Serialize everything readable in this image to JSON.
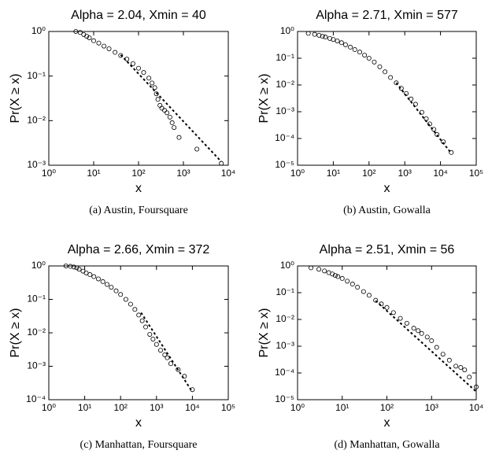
{
  "chart_data": [
    {
      "type": "scatter",
      "title": "Alpha = 2.04, Xmin = 40",
      "xlabel": "x",
      "ylabel": "Pr(X ≥ x)",
      "caption": "(a)  Austin, Foursquare",
      "log_x": true,
      "log_y": true,
      "xlim": [
        1,
        10000
      ],
      "ylim": [
        0.001,
        1
      ],
      "xticks": [
        {
          "value": 1,
          "label": "10⁰"
        },
        {
          "value": 10,
          "label": "10¹"
        },
        {
          "value": 100,
          "label": "10²"
        },
        {
          "value": 1000,
          "label": "10³"
        },
        {
          "value": 10000,
          "label": "10⁴"
        }
      ],
      "yticks": [
        {
          "value": 0.001,
          "label": "10⁻³"
        },
        {
          "value": 0.01,
          "label": "10⁻²"
        },
        {
          "value": 0.1,
          "label": "10⁻¹"
        },
        {
          "value": 1,
          "label": "10⁰"
        }
      ],
      "series": [
        {
          "marker": "circle",
          "color": "#000000",
          "x": [
            4,
            5,
            6,
            7,
            8,
            10,
            13,
            17,
            22,
            30,
            40,
            55,
            75,
            100,
            130,
            170,
            200,
            230,
            250,
            270,
            300,
            330,
            380,
            430,
            500,
            560,
            620,
            800,
            2000,
            7000
          ],
          "values": [
            1,
            0.95,
            0.85,
            0.78,
            0.72,
            0.62,
            0.55,
            0.47,
            0.41,
            0.34,
            0.29,
            0.24,
            0.19,
            0.15,
            0.12,
            0.09,
            0.07,
            0.055,
            0.04,
            0.03,
            0.022,
            0.019,
            0.017,
            0.015,
            0.012,
            0.009,
            0.007,
            0.0042,
            0.0023,
            0.0011
          ]
        },
        {
          "line": "dashed",
          "color": "#000000",
          "x": [
            40,
            7000
          ],
          "values": [
            0.3,
            0.0012
          ]
        }
      ]
    },
    {
      "type": "scatter",
      "title": "Alpha = 2.71, Xmin = 577",
      "xlabel": "x",
      "ylabel": "Pr(X ≥ x)",
      "caption": "(b)  Austin, Gowalla",
      "log_x": true,
      "log_y": true,
      "xlim": [
        1,
        100000
      ],
      "ylim": [
        1e-05,
        1
      ],
      "xticks": [
        {
          "value": 1,
          "label": "10⁰"
        },
        {
          "value": 10,
          "label": "10¹"
        },
        {
          "value": 100,
          "label": "10²"
        },
        {
          "value": 1000,
          "label": "10³"
        },
        {
          "value": 10000,
          "label": "10⁴"
        },
        {
          "value": 100000,
          "label": "10⁵"
        }
      ],
      "yticks": [
        {
          "value": 1e-05,
          "label": "10⁻⁵"
        },
        {
          "value": 0.0001,
          "label": "10⁻⁴"
        },
        {
          "value": 0.001,
          "label": "10⁻³"
        },
        {
          "value": 0.01,
          "label": "10⁻²"
        },
        {
          "value": 0.1,
          "label": "10⁻¹"
        },
        {
          "value": 1,
          "label": "10⁰"
        }
      ],
      "series": [
        {
          "marker": "circle",
          "color": "#000000",
          "x": [
            2,
            3,
            4,
            5,
            6,
            8,
            10,
            13,
            17,
            22,
            30,
            40,
            55,
            75,
            100,
            140,
            200,
            280,
            400,
            577,
            800,
            1100,
            1500,
            2000,
            3000,
            4000,
            5000,
            6500,
            8000,
            12000,
            20000
          ],
          "values": [
            0.85,
            0.78,
            0.72,
            0.66,
            0.62,
            0.55,
            0.5,
            0.44,
            0.38,
            0.32,
            0.26,
            0.21,
            0.17,
            0.13,
            0.1,
            0.072,
            0.048,
            0.031,
            0.019,
            0.012,
            0.0075,
            0.0048,
            0.003,
            0.0019,
            0.00095,
            0.00055,
            0.00035,
            0.00022,
            0.00014,
            7.5e-05,
            3e-05
          ]
        },
        {
          "line": "dashed",
          "color": "#000000",
          "x": [
            577,
            20000
          ],
          "values": [
            0.012,
            2.8e-05
          ]
        }
      ]
    },
    {
      "type": "scatter",
      "title": "Alpha = 2.66, Xmin = 372",
      "xlabel": "x",
      "ylabel": "Pr(X ≥ x)",
      "caption": "(c)  Manhattan, Foursquare",
      "log_x": true,
      "log_y": true,
      "xlim": [
        1,
        100000
      ],
      "ylim": [
        0.0001,
        1
      ],
      "xticks": [
        {
          "value": 1,
          "label": "10⁰"
        },
        {
          "value": 10,
          "label": "10¹"
        },
        {
          "value": 100,
          "label": "10²"
        },
        {
          "value": 1000,
          "label": "10³"
        },
        {
          "value": 10000,
          "label": "10⁴"
        },
        {
          "value": 100000,
          "label": "10⁵"
        }
      ],
      "yticks": [
        {
          "value": 0.0001,
          "label": "10⁻⁴"
        },
        {
          "value": 0.001,
          "label": "10⁻³"
        },
        {
          "value": 0.01,
          "label": "10⁻²"
        },
        {
          "value": 0.1,
          "label": "10⁻¹"
        },
        {
          "value": 1,
          "label": "10⁰"
        }
      ],
      "series": [
        {
          "marker": "circle",
          "color": "#000000",
          "x": [
            3,
            4,
            5,
            6,
            7,
            9,
            11,
            14,
            18,
            24,
            32,
            42,
            55,
            75,
            100,
            140,
            190,
            250,
            320,
            400,
            500,
            650,
            800,
            1000,
            1300,
            1700,
            2000,
            2500,
            4000,
            6000,
            10000
          ],
          "values": [
            1,
            0.97,
            0.93,
            0.88,
            0.8,
            0.7,
            0.62,
            0.55,
            0.48,
            0.41,
            0.34,
            0.28,
            0.23,
            0.18,
            0.14,
            0.1,
            0.072,
            0.05,
            0.034,
            0.023,
            0.015,
            0.009,
            0.0065,
            0.0045,
            0.003,
            0.0022,
            0.0018,
            0.0012,
            0.0008,
            0.0005,
            0.0002
          ]
        },
        {
          "line": "dashed",
          "color": "#000000",
          "x": [
            372,
            10000
          ],
          "values": [
            0.04,
            0.00017
          ]
        }
      ]
    },
    {
      "type": "scatter",
      "title": "Alpha = 2.51, Xmin = 56",
      "xlabel": "x",
      "ylabel": "Pr(X ≥ x)",
      "caption": "(d)  Manhattan, Gowalla",
      "log_x": true,
      "log_y": true,
      "xlim": [
        1,
        10000
      ],
      "ylim": [
        1e-05,
        1
      ],
      "xticks": [
        {
          "value": 1,
          "label": "10⁰"
        },
        {
          "value": 10,
          "label": "10¹"
        },
        {
          "value": 100,
          "label": "10²"
        },
        {
          "value": 1000,
          "label": "10³"
        },
        {
          "value": 10000,
          "label": "10⁴"
        }
      ],
      "yticks": [
        {
          "value": 1e-05,
          "label": "10⁻⁵"
        },
        {
          "value": 0.0001,
          "label": "10⁻⁴"
        },
        {
          "value": 0.001,
          "label": "10⁻³"
        },
        {
          "value": 0.01,
          "label": "10⁻²"
        },
        {
          "value": 0.1,
          "label": "10⁻¹"
        },
        {
          "value": 1,
          "label": "10⁰"
        }
      ],
      "series": [
        {
          "marker": "circle",
          "color": "#000000",
          "x": [
            2,
            3,
            4,
            5,
            6,
            7,
            8,
            10,
            13,
            17,
            22,
            30,
            40,
            56,
            75,
            100,
            140,
            200,
            280,
            400,
            500,
            600,
            800,
            1000,
            1300,
            1800,
            2500,
            3500,
            4500,
            5500,
            7000,
            10000
          ],
          "values": [
            0.85,
            0.75,
            0.65,
            0.56,
            0.5,
            0.44,
            0.4,
            0.34,
            0.27,
            0.21,
            0.16,
            0.11,
            0.08,
            0.052,
            0.038,
            0.028,
            0.018,
            0.011,
            0.0072,
            0.0047,
            0.0038,
            0.003,
            0.0022,
            0.0016,
            0.0009,
            0.0005,
            0.0003,
            0.00018,
            0.00016,
            0.00013,
            7e-05,
            3e-05
          ]
        },
        {
          "line": "dashed",
          "color": "#000000",
          "x": [
            56,
            10000
          ],
          "values": [
            0.05,
            2e-05
          ]
        }
      ]
    }
  ]
}
